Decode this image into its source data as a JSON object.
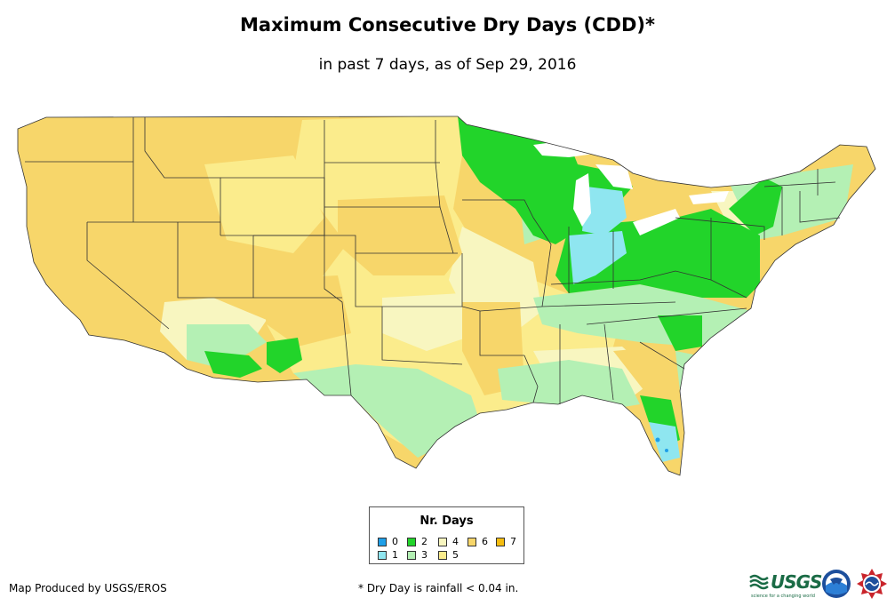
{
  "title": "Maximum Consecutive Dry Days (CDD)*",
  "subtitle": "in past 7 days, as of Sep 29, 2016",
  "legend": {
    "title": "Nr. Days",
    "items": [
      {
        "label": "0",
        "color": "#1f9fe8"
      },
      {
        "label": "1",
        "color": "#8fe6f0"
      },
      {
        "label": "2",
        "color": "#22d42a"
      },
      {
        "label": "3",
        "color": "#b4f0b4"
      },
      {
        "label": "4",
        "color": "#f8f6c0"
      },
      {
        "label": "5",
        "color": "#fbec8c"
      },
      {
        "label": "6",
        "color": "#f7d66a"
      },
      {
        "label": "7",
        "color": "#f5bd10"
      }
    ]
  },
  "footer": {
    "credit": "Map Produced by USGS/EROS",
    "note": "* Dry Day is rainfall < 0.04 in."
  },
  "logos": {
    "usgs": "USGS",
    "usgs_tagline": "science for a changing world"
  }
}
